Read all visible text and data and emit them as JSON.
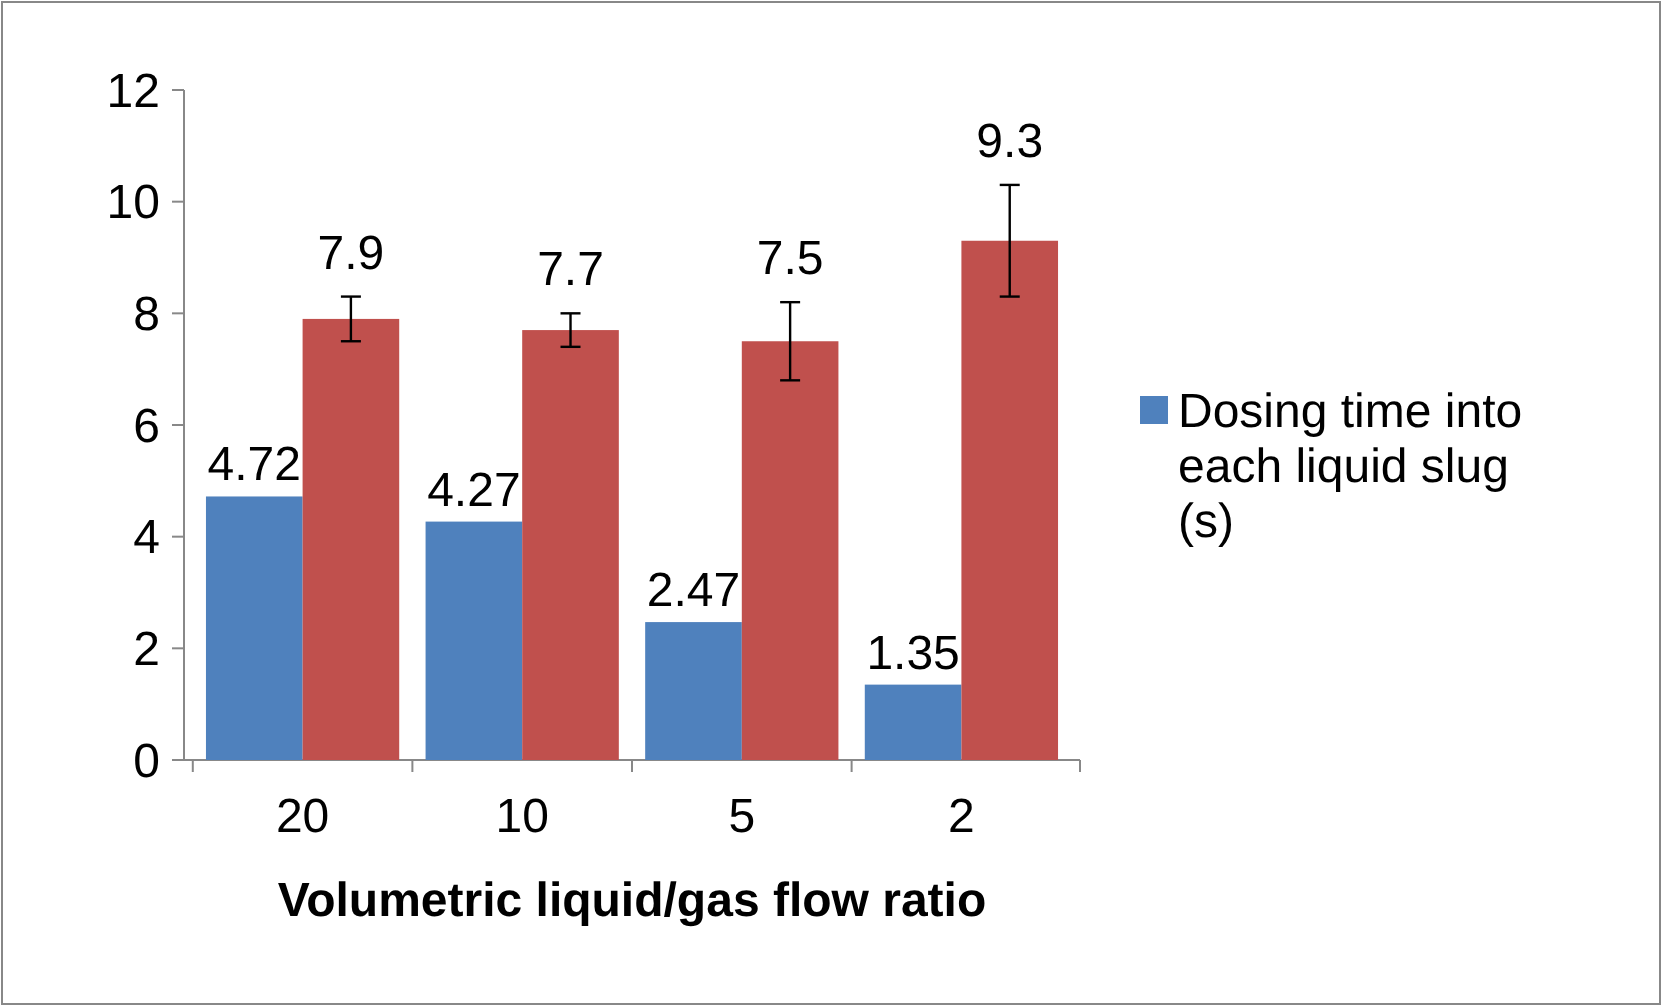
{
  "chart_data": {
    "type": "bar",
    "xlabel": "Volumetric liquid/gas flow ratio",
    "categories": [
      "20",
      "10",
      "5",
      "2"
    ],
    "series": [
      {
        "name": "Dosing time into each liquid slug (s)",
        "color": "#4f81bd",
        "values": [
          4.72,
          4.27,
          2.47,
          1.35
        ]
      },
      {
        "color": "#c0504d",
        "values": [
          7.9,
          7.7,
          7.5,
          9.3
        ],
        "errors": [
          0.4,
          0.3,
          0.7,
          1.0
        ]
      }
    ],
    "ylim": [
      0,
      12
    ],
    "yticks": [
      0,
      2,
      4,
      6,
      8,
      10,
      12
    ],
    "grid": false,
    "legend": "right",
    "data_labels": true
  }
}
